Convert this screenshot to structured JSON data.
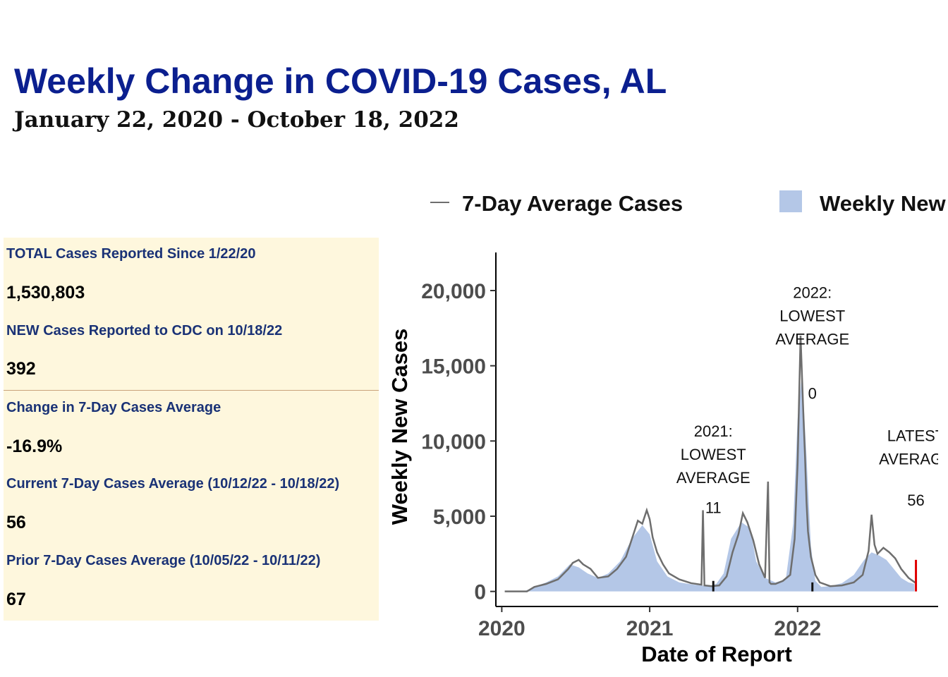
{
  "header": {
    "title": "Weekly Change in COVID-19 Cases, AL",
    "subtitle": "January 22, 2020 - October 18, 2022"
  },
  "stats": [
    {
      "label": "TOTAL Cases Reported Since 1/22/20",
      "value": "1,530,803"
    },
    {
      "label": "NEW Cases Reported to CDC on 10/18/22",
      "value": "392"
    },
    {
      "label": "Change in 7-Day Cases Average",
      "value": "-16.9%"
    },
    {
      "label": "Current 7-Day Cases Average (10/12/22 - 10/18/22)",
      "value": "56"
    },
    {
      "label": "Prior 7-Day Cases Average (10/05/22 - 10/11/22)",
      "value": "67"
    }
  ],
  "chart_data": {
    "type": "bar",
    "title": "",
    "xlabel": "Date of Report",
    "ylabel": "Weekly New Cases",
    "xlim": [
      2019.96,
      2022.95
    ],
    "ylim": [
      -1000,
      23000
    ],
    "x_ticks": [
      {
        "value": 2020,
        "label": "2020"
      },
      {
        "value": 2021,
        "label": "2021"
      },
      {
        "value": 2022,
        "label": "2022"
      }
    ],
    "y_ticks": [
      {
        "value": 0,
        "label": "0"
      },
      {
        "value": 5000,
        "label": "5,000"
      },
      {
        "value": 10000,
        "label": "10,000"
      },
      {
        "value": 15000,
        "label": "15,000"
      },
      {
        "value": 20000,
        "label": "20,000"
      }
    ],
    "legend": {
      "position": "top",
      "entries": [
        {
          "name": "7-Day Average Cases",
          "kind": "line",
          "color": "#6e6e6e"
        },
        {
          "name": "Weekly New",
          "kind": "fill",
          "color": "#b4c7e7"
        }
      ]
    },
    "colors": {
      "bars": "#b4c7e7",
      "line": "#6e6e6e",
      "latest_marker": "#e00000",
      "lowest_marker": "#111111"
    },
    "series": [
      {
        "name": "Weekly New",
        "x": [
          2020.06,
          2020.15,
          2020.22,
          2020.3,
          2020.38,
          2020.46,
          2020.52,
          2020.58,
          2020.65,
          2020.72,
          2020.8,
          2020.88,
          2020.95,
          2021.0,
          2021.05,
          2021.12,
          2021.2,
          2021.3,
          2021.4,
          2021.45,
          2021.5,
          2021.55,
          2021.62,
          2021.68,
          2021.72,
          2021.78,
          2021.85,
          2021.92,
          2021.97,
          2022.0,
          2022.03,
          2022.06,
          2022.09,
          2022.12,
          2022.16,
          2022.22,
          2022.3,
          2022.38,
          2022.45,
          2022.5,
          2022.55,
          2022.6,
          2022.65,
          2022.7,
          2022.75,
          2022.79
        ],
        "values": [
          0,
          0,
          300,
          600,
          1000,
          1800,
          1600,
          1200,
          900,
          1200,
          2000,
          3500,
          4400,
          3800,
          2000,
          1000,
          600,
          450,
          350,
          500,
          1200,
          3500,
          4600,
          4200,
          2000,
          900,
          600,
          800,
          4500,
          11500,
          14500,
          9000,
          3000,
          700,
          300,
          350,
          550,
          1100,
          2100,
          2600,
          2400,
          2100,
          1500,
          900,
          600,
          500
        ]
      },
      {
        "name": "7-Day Average Cases",
        "x": [
          2020.02,
          2020.17,
          2020.22,
          2020.3,
          2020.38,
          2020.45,
          2020.48,
          2020.52,
          2020.55,
          2020.6,
          2020.65,
          2020.72,
          2020.78,
          2020.84,
          2020.88,
          2020.92,
          2020.95,
          2020.98,
          2021.0,
          2021.02,
          2021.05,
          2021.09,
          2021.13,
          2021.2,
          2021.28,
          2021.35,
          2021.36,
          2021.37,
          2021.42,
          2021.47,
          2021.52,
          2021.56,
          2021.6,
          2021.63,
          2021.66,
          2021.7,
          2021.74,
          2021.78,
          2021.8,
          2021.81,
          2021.82,
          2021.85,
          2021.9,
          2021.95,
          2021.98,
          2022.0,
          2022.01,
          2022.02,
          2022.03,
          2022.04,
          2022.05,
          2022.06,
          2022.07,
          2022.09,
          2022.12,
          2022.15,
          2022.22,
          2022.3,
          2022.38,
          2022.44,
          2022.48,
          2022.5,
          2022.52,
          2022.54,
          2022.58,
          2022.62,
          2022.66,
          2022.7,
          2022.75,
          2022.8
        ],
        "values": [
          0,
          0,
          300,
          500,
          800,
          1500,
          1900,
          2100,
          1800,
          1500,
          900,
          1000,
          1500,
          2300,
          3500,
          4700,
          4500,
          5400,
          4800,
          3600,
          2600,
          1800,
          1200,
          800,
          550,
          450,
          5400,
          400,
          350,
          400,
          1000,
          2600,
          3800,
          5200,
          4600,
          3400,
          1800,
          900,
          7300,
          600,
          500,
          500,
          700,
          1100,
          3500,
          8500,
          12800,
          17000,
          14200,
          11500,
          9000,
          6000,
          4000,
          2300,
          1100,
          600,
          350,
          400,
          600,
          1100,
          2700,
          5100,
          3100,
          2500,
          2900,
          2600,
          2200,
          1500,
          900,
          550
        ]
      }
    ],
    "annotations": [
      {
        "text": [
          "2021:",
          "LOWEST",
          "AVERAGE"
        ],
        "x": 2021.43,
        "y": 10300
      },
      {
        "text": [
          "11"
        ],
        "x": 2021.43,
        "y": 5200
      },
      {
        "text": [
          "2022:",
          "LOWEST",
          "AVERAGE"
        ],
        "x": 2022.1,
        "y": 19500
      },
      {
        "text": [
          "0"
        ],
        "x": 2022.1,
        "y": 12800
      },
      {
        "text": [
          "LATEST",
          "AVERAGE"
        ],
        "x": 2022.8,
        "y": 10000
      },
      {
        "text": [
          "56"
        ],
        "x": 2022.8,
        "y": 5700
      }
    ],
    "markers": [
      {
        "x": 2021.43,
        "y_top": 700,
        "color": "#111111"
      },
      {
        "x": 2022.1,
        "y_top": 600,
        "color": "#111111"
      },
      {
        "x": 2022.8,
        "y_top": 2100,
        "color": "#e00000"
      }
    ]
  }
}
